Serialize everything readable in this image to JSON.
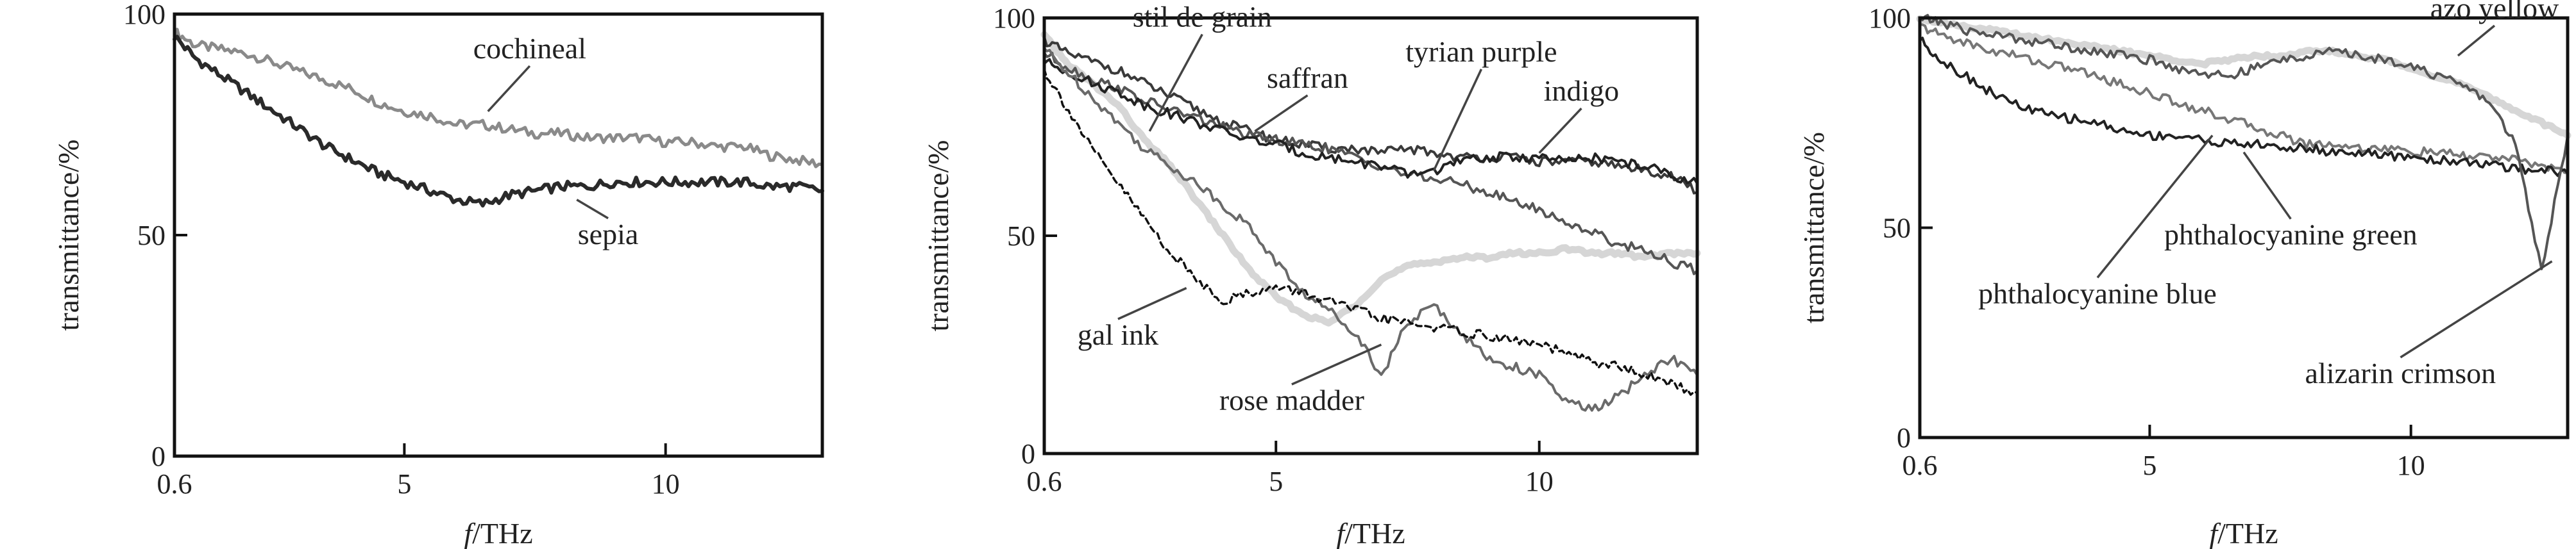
{
  "chart_data": [
    {
      "type": "line",
      "title": "",
      "xlabel_italic": "f",
      "xlabel_rest": "/THz",
      "ylabel": "transmittance/%",
      "xlim": [
        0.6,
        13
      ],
      "ylim": [
        0,
        100
      ],
      "xticks": [
        {
          "v": 0.6,
          "label": "0.6"
        },
        {
          "v": 5,
          "label": "5"
        },
        {
          "v": 10,
          "label": "10"
        }
      ],
      "yticks": [
        {
          "v": 0,
          "label": "0"
        },
        {
          "v": 50,
          "label": "50"
        },
        {
          "v": 100,
          "label": "100"
        }
      ],
      "series": [
        {
          "name": "cochineal",
          "color": "#8a8a8a",
          "width": 5,
          "dash": "",
          "x": [
            0.6,
            1,
            1.5,
            2,
            2.5,
            3,
            3.5,
            4,
            4.5,
            5,
            5.5,
            6,
            6.5,
            7,
            7.5,
            8,
            8.5,
            9,
            9.5,
            10,
            10.5,
            11,
            11.5,
            12,
            12.5,
            13
          ],
          "y": [
            96,
            93,
            92,
            91,
            89,
            87,
            85,
            83,
            80,
            78,
            77,
            75,
            75,
            74,
            73,
            73,
            72,
            72,
            72,
            71,
            71,
            70,
            70,
            68,
            67,
            66
          ]
        },
        {
          "name": "sepia",
          "color": "#2a2a2a",
          "width": 6,
          "dash": "",
          "x": [
            0.6,
            1,
            1.5,
            2,
            2.5,
            3,
            3.5,
            4,
            4.5,
            5,
            5.5,
            6,
            6.5,
            7,
            7.5,
            8,
            8.5,
            9,
            9.5,
            10,
            10.5,
            11,
            11.5,
            12,
            12.5,
            13
          ],
          "y": [
            95,
            90,
            86,
            82,
            78,
            74,
            70,
            67,
            64,
            62,
            60,
            58,
            57,
            59,
            60,
            61,
            61,
            62,
            62,
            62,
            62,
            62,
            62,
            61,
            61,
            60
          ]
        }
      ],
      "annotations": [
        {
          "text": "cochineal",
          "x": 7.4,
          "y": 90,
          "ax": 6.6,
          "ay": 78
        },
        {
          "text": "sepia",
          "x": 8.9,
          "y": 48,
          "ax": 8.3,
          "ay": 58
        }
      ]
    },
    {
      "type": "line",
      "title": "",
      "xlabel_italic": "f",
      "xlabel_rest": "/THz",
      "ylabel": "transmittance/%",
      "xlim": [
        0.6,
        13
      ],
      "ylim": [
        0,
        100
      ],
      "xticks": [
        {
          "v": 0.6,
          "label": "0.6"
        },
        {
          "v": 5,
          "label": "5"
        },
        {
          "v": 10,
          "label": "10"
        }
      ],
      "yticks": [
        {
          "v": 0,
          "label": "0"
        },
        {
          "v": 50,
          "label": "50"
        },
        {
          "v": 100,
          "label": "100"
        }
      ],
      "series": [
        {
          "name": "stil de grain",
          "color": "#d6d6d6",
          "width": 11,
          "dash": "",
          "x": [
            0.6,
            1,
            1.5,
            2,
            2.5,
            3,
            3.5,
            4,
            4.5,
            5,
            5.5,
            6,
            6.5,
            7,
            7.5,
            8,
            8.5,
            9,
            9.5,
            10,
            10.5,
            11,
            11.5,
            12,
            12.5,
            13
          ],
          "y": [
            96,
            90,
            85,
            80,
            72,
            66,
            58,
            50,
            42,
            36,
            32,
            30,
            34,
            40,
            43,
            44,
            45,
            45,
            46,
            46,
            47,
            46,
            46,
            45,
            46,
            46
          ]
        },
        {
          "name": "saffran",
          "color": "#3a3a3a",
          "width": 4,
          "dash": "",
          "x": [
            0.6,
            1,
            1.5,
            2,
            2.5,
            3,
            3.5,
            4,
            4.5,
            5,
            5.5,
            6,
            6.5,
            7,
            7.5,
            8,
            8.5,
            9,
            9.5,
            10,
            10.5,
            11,
            11.5,
            12,
            12.5,
            13
          ],
          "y": [
            95,
            92,
            90,
            88,
            85,
            82,
            79,
            76,
            74,
            72,
            71,
            70,
            70,
            69,
            70,
            69,
            68,
            68,
            68,
            67,
            67,
            67,
            66,
            65,
            64,
            60
          ]
        },
        {
          "name": "tyrian purple",
          "color": "#555555",
          "width": 4,
          "dash": "",
          "x": [
            0.6,
            1,
            1.5,
            2,
            2.5,
            3,
            3.5,
            4,
            4.5,
            5,
            5.5,
            6,
            6.5,
            7,
            7.5,
            8,
            8.5,
            9,
            9.5,
            10,
            10.5,
            11,
            11.5,
            12,
            12.5,
            13
          ],
          "y": [
            92,
            89,
            86,
            84,
            81,
            79,
            77,
            75,
            73,
            72,
            71,
            70,
            68,
            66,
            64,
            63,
            62,
            60,
            58,
            56,
            53,
            51,
            48,
            47,
            44,
            42
          ]
        },
        {
          "name": "indigo",
          "color": "#222222",
          "width": 4,
          "dash": "",
          "x": [
            0.6,
            1,
            1.5,
            2,
            2.5,
            3,
            3.5,
            4,
            4.5,
            5,
            5.5,
            6,
            6.5,
            7,
            7.5,
            8,
            8.5,
            9,
            9.5,
            10,
            10.5,
            11,
            11.5,
            12,
            12.5,
            13
          ],
          "y": [
            90,
            88,
            85,
            83,
            80,
            78,
            76,
            74,
            72,
            71,
            69,
            68,
            67,
            66,
            64,
            65,
            67,
            68,
            68,
            68,
            67,
            68,
            67,
            66,
            64,
            62
          ]
        },
        {
          "name": "rose madder",
          "color": "#6a6a6a",
          "width": 4,
          "dash": "",
          "x": [
            0.6,
            1,
            1.5,
            2,
            2.5,
            3,
            3.5,
            4,
            4.5,
            5,
            5.5,
            6,
            6.5,
            7,
            7.5,
            8,
            8.5,
            9,
            9.5,
            10,
            10.5,
            11,
            11.5,
            12,
            12.5,
            13
          ],
          "y": [
            93,
            88,
            82,
            76,
            70,
            66,
            62,
            57,
            52,
            44,
            37,
            33,
            28,
            18,
            30,
            34,
            28,
            22,
            20,
            18,
            12,
            10,
            13,
            18,
            22,
            18
          ]
        },
        {
          "name": "gal ink",
          "color": "#111111",
          "width": 3.5,
          "dash": "9,6",
          "x": [
            0.6,
            1,
            1.5,
            2,
            2.5,
            3,
            3.5,
            4,
            4.5,
            5,
            5.5,
            6,
            6.5,
            7,
            7.5,
            8,
            8.5,
            9,
            9.5,
            10,
            10.5,
            11,
            11.5,
            12,
            12.5,
            13
          ],
          "y": [
            88,
            80,
            70,
            62,
            54,
            46,
            40,
            35,
            37,
            38,
            37,
            35,
            33,
            31,
            30,
            29,
            28,
            27,
            26,
            25,
            23,
            21,
            20,
            18,
            16,
            14
          ]
        }
      ],
      "annotations": [
        {
          "text": "stil de grain",
          "x": 3.6,
          "y": 98,
          "ax": 2.6,
          "ay": 74
        },
        {
          "text": "saffran",
          "x": 5.6,
          "y": 84,
          "ax": 4.6,
          "ay": 74
        },
        {
          "text": "tyrian purple",
          "x": 8.9,
          "y": 90,
          "ax": 8.0,
          "ay": 65
        },
        {
          "text": "indigo",
          "x": 10.8,
          "y": 81,
          "ax": 10.0,
          "ay": 69
        },
        {
          "text": "rose madder",
          "x": 5.3,
          "y": 10,
          "ax": 7.0,
          "ay": 25
        },
        {
          "text": "gal ink",
          "x": 2.0,
          "y": 25,
          "ax": 3.3,
          "ay": 38
        }
      ]
    },
    {
      "type": "line",
      "title": "",
      "xlabel_italic": "f",
      "xlabel_rest": "/THz",
      "ylabel": "transmittance/%",
      "xlim": [
        0.6,
        13
      ],
      "ylim": [
        0,
        100
      ],
      "xticks": [
        {
          "v": 0.6,
          "label": "0.6"
        },
        {
          "v": 5,
          "label": "5"
        },
        {
          "v": 10,
          "label": "10"
        }
      ],
      "yticks": [
        {
          "v": 0,
          "label": "0"
        },
        {
          "v": 50,
          "label": "50"
        },
        {
          "v": 100,
          "label": "100"
        }
      ],
      "series": [
        {
          "name": "azo yellow",
          "color": "#d6d6d6",
          "width": 11,
          "dash": "",
          "x": [
            0.6,
            1,
            1.5,
            2,
            2.5,
            3,
            3.5,
            4,
            4.5,
            5,
            5.5,
            6,
            6.5,
            7,
            7.5,
            8,
            8.5,
            9,
            9.5,
            10,
            10.5,
            11,
            11.5,
            12,
            12.5,
            13
          ],
          "y": [
            100,
            99,
            98,
            97,
            96,
            95,
            94,
            93,
            92,
            91,
            90,
            89,
            90,
            91,
            91,
            92,
            92,
            91,
            90,
            88,
            86,
            84,
            81,
            78,
            75,
            72
          ]
        },
        {
          "name": "phthalocyanine green",
          "color": "#777777",
          "width": 4,
          "dash": "",
          "x": [
            0.6,
            1,
            1.5,
            2,
            2.5,
            3,
            3.5,
            4,
            4.5,
            5,
            5.5,
            6,
            6.5,
            7,
            7.5,
            8,
            8.5,
            9,
            9.5,
            10,
            10.5,
            11,
            11.5,
            12,
            12.5,
            13
          ],
          "y": [
            98,
            96,
            94,
            92,
            91,
            89,
            88,
            86,
            84,
            82,
            80,
            78,
            76,
            74,
            72,
            70,
            70,
            69,
            69,
            68,
            68,
            67,
            67,
            66,
            65,
            63
          ]
        },
        {
          "name": "phthalocyanine blue",
          "color": "#222222",
          "width": 4,
          "dash": "",
          "x": [
            0.6,
            1,
            1.5,
            2,
            2.5,
            3,
            3.5,
            4,
            4.5,
            5,
            5.5,
            6,
            6.5,
            7,
            7.5,
            8,
            8.5,
            9,
            9.5,
            10,
            10.5,
            11,
            11.5,
            12,
            12.5,
            13
          ],
          "y": [
            95,
            90,
            86,
            82,
            79,
            77,
            76,
            75,
            73,
            72,
            72,
            71,
            70,
            70,
            69,
            69,
            68,
            68,
            67,
            67,
            66,
            66,
            65,
            64,
            64,
            63
          ]
        },
        {
          "name": "alizarin crimson",
          "color": "#555555",
          "width": 4,
          "dash": "",
          "x": [
            0.6,
            1,
            1.5,
            2,
            2.5,
            3,
            3.5,
            4,
            4.5,
            5,
            5.5,
            6,
            6.5,
            7,
            7.5,
            8,
            8.5,
            9,
            9.5,
            10,
            10.5,
            11,
            11.5,
            12,
            12.5,
            13
          ],
          "y": [
            100,
            99,
            97,
            96,
            95,
            94,
            93,
            92,
            91,
            90,
            88,
            87,
            86,
            88,
            90,
            91,
            92,
            91,
            90,
            89,
            86,
            84,
            80,
            70,
            40,
            72
          ]
        }
      ],
      "annotations": [
        {
          "text": "azo yellow",
          "x": 11.6,
          "y": 100,
          "ax": 10.9,
          "ay": 91
        },
        {
          "text": "phthalocyanine green",
          "x": 7.7,
          "y": 46,
          "ax": 6.8,
          "ay": 68
        },
        {
          "text": "phthalocyanine blue",
          "x": 4.0,
          "y": 32,
          "ax": 6.2,
          "ay": 72
        },
        {
          "text": "alizarin crimson",
          "x": 9.8,
          "y": 13,
          "ax": 12.7,
          "ay": 42
        }
      ]
    }
  ]
}
